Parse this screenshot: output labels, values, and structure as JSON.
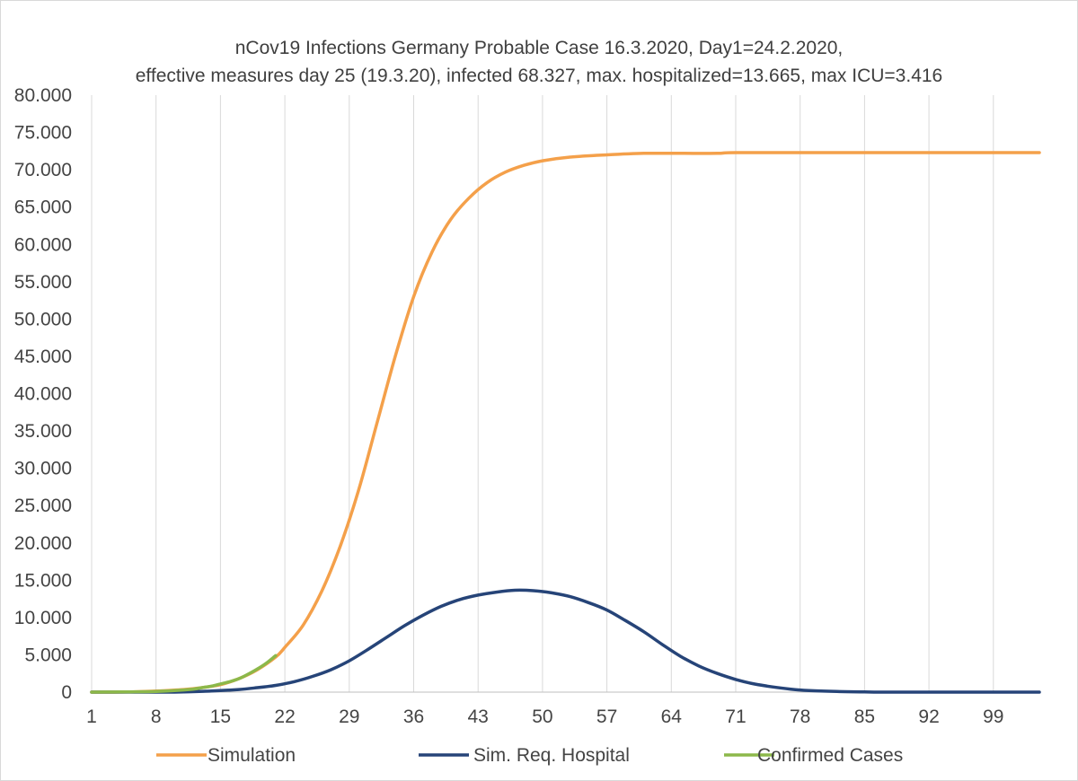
{
  "chart_data": {
    "type": "line",
    "title_lines": [
      "nCov19 Infections Germany Probable Case 16.3.2020, Day1=24.2.2020,",
      "effective measures day 25 (19.3.20), infected 68.327, max. hospitalized=13.665, max ICU=3.416"
    ],
    "xlim": [
      1,
      104
    ],
    "x_ticks": [
      1,
      8,
      15,
      22,
      29,
      36,
      43,
      50,
      57,
      64,
      71,
      78,
      85,
      92,
      99
    ],
    "ylim": [
      0,
      80000
    ],
    "y_ticks": [
      0,
      5000,
      10000,
      15000,
      20000,
      25000,
      30000,
      35000,
      40000,
      45000,
      50000,
      55000,
      60000,
      65000,
      70000,
      75000,
      80000
    ],
    "y_tick_labels": [
      "0",
      "5.000",
      "10.000",
      "15.000",
      "20.000",
      "25.000",
      "30.000",
      "35.000",
      "40.000",
      "45.000",
      "50.000",
      "55.000",
      "60.000",
      "65.000",
      "70.000",
      "75.000",
      "80.000"
    ],
    "grid": "vertical",
    "legend_position": "bottom",
    "series": [
      {
        "name": "Simulation",
        "color": "#f4a04a",
        "points": [
          [
            1,
            0
          ],
          [
            5,
            20
          ],
          [
            8,
            150
          ],
          [
            11,
            350
          ],
          [
            13,
            600
          ],
          [
            15,
            1000
          ],
          [
            17,
            1800
          ],
          [
            19,
            3000
          ],
          [
            21,
            4700
          ],
          [
            22,
            6000
          ],
          [
            24,
            9000
          ],
          [
            26,
            13500
          ],
          [
            28,
            19500
          ],
          [
            30,
            27000
          ],
          [
            32,
            36000
          ],
          [
            34,
            45000
          ],
          [
            36,
            53000
          ],
          [
            38,
            59000
          ],
          [
            40,
            63300
          ],
          [
            42,
            66200
          ],
          [
            44,
            68300
          ],
          [
            46,
            69700
          ],
          [
            48,
            70600
          ],
          [
            50,
            71200
          ],
          [
            53,
            71700
          ],
          [
            57,
            72000
          ],
          [
            61,
            72200
          ],
          [
            65,
            72200
          ],
          [
            69,
            72200
          ],
          [
            71,
            72300
          ],
          [
            80,
            72300
          ],
          [
            104,
            72300
          ]
        ]
      },
      {
        "name": "Sim. Req. Hospital",
        "color": "#264478",
        "points": [
          [
            1,
            0
          ],
          [
            10,
            0
          ],
          [
            14,
            150
          ],
          [
            17,
            350
          ],
          [
            19,
            600
          ],
          [
            21,
            900
          ],
          [
            23,
            1400
          ],
          [
            25,
            2100
          ],
          [
            27,
            3000
          ],
          [
            29,
            4200
          ],
          [
            31,
            5700
          ],
          [
            33,
            7300
          ],
          [
            35,
            8900
          ],
          [
            37,
            10300
          ],
          [
            39,
            11500
          ],
          [
            41,
            12400
          ],
          [
            43,
            13000
          ],
          [
            45,
            13400
          ],
          [
            47,
            13650
          ],
          [
            49,
            13600
          ],
          [
            51,
            13300
          ],
          [
            53,
            12800
          ],
          [
            55,
            12000
          ],
          [
            57,
            11000
          ],
          [
            59,
            9600
          ],
          [
            61,
            8100
          ],
          [
            63,
            6400
          ],
          [
            65,
            4800
          ],
          [
            67,
            3500
          ],
          [
            69,
            2500
          ],
          [
            71,
            1700
          ],
          [
            73,
            1100
          ],
          [
            75,
            700
          ],
          [
            77,
            400
          ],
          [
            79,
            200
          ],
          [
            82,
            80
          ],
          [
            85,
            20
          ],
          [
            88,
            0
          ],
          [
            104,
            0
          ]
        ]
      },
      {
        "name": "Confirmed Cases",
        "color": "#8cb84a",
        "points": [
          [
            1,
            0
          ],
          [
            4,
            20
          ],
          [
            6,
            50
          ],
          [
            8,
            100
          ],
          [
            10,
            200
          ],
          [
            12,
            400
          ],
          [
            13,
            600
          ],
          [
            14,
            800
          ],
          [
            15,
            1100
          ],
          [
            16,
            1400
          ],
          [
            17,
            1800
          ],
          [
            18,
            2400
          ],
          [
            19,
            3100
          ],
          [
            20,
            3900
          ],
          [
            21,
            4900
          ]
        ]
      }
    ]
  }
}
